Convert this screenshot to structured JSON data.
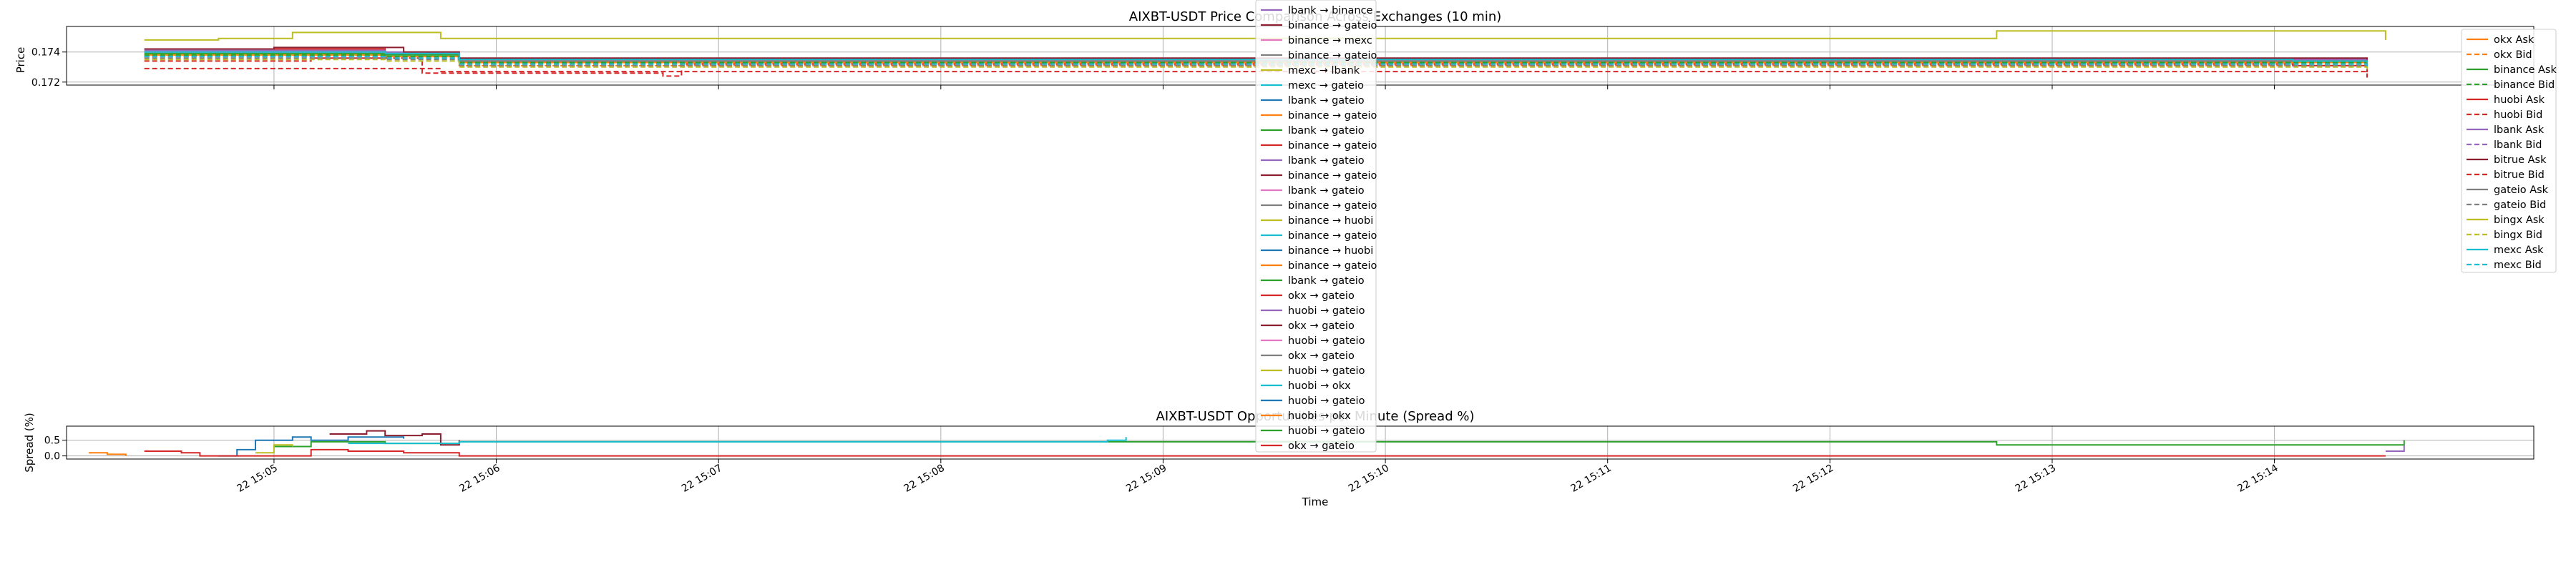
{
  "figure": {
    "background": "#ffffff"
  },
  "price_chart": {
    "title": "AIXBT-USDT Price Comparison Across Exchanges (10 min)",
    "ylabel": "Price",
    "yticks": [
      "0.174",
      "0.172"
    ],
    "legend_entries": [
      {
        "label": "okx Ask",
        "color": "#ff7f0e",
        "dashed": false
      },
      {
        "label": "okx Bid",
        "color": "#ff7f0e",
        "dashed": true
      },
      {
        "label": "binance Ask",
        "color": "#2ca02c",
        "dashed": false
      },
      {
        "label": "binance Bid",
        "color": "#2ca02c",
        "dashed": true
      },
      {
        "label": "huobi Ask",
        "color": "#d62728",
        "dashed": false
      },
      {
        "label": "huobi Bid",
        "color": "#d62728",
        "dashed": true
      },
      {
        "label": "lbank Ask",
        "color": "#9467bd",
        "dashed": false
      },
      {
        "label": "lbank Bid",
        "color": "#9467bd",
        "dashed": true
      },
      {
        "label": "bitrue Ask",
        "color": "#8c1f2f",
        "dashed": false
      },
      {
        "label": "bitrue Bid",
        "color": "#d62728",
        "dashed": true
      },
      {
        "label": "gateio Ask",
        "color": "#7f7f7f",
        "dashed": false
      },
      {
        "label": "gateio Bid",
        "color": "#7f7f7f",
        "dashed": true
      },
      {
        "label": "bingx Ask",
        "color": "#bcbd22",
        "dashed": false
      },
      {
        "label": "bingx Bid",
        "color": "#bcbd22",
        "dashed": true
      },
      {
        "label": "mexc Ask",
        "color": "#17becf",
        "dashed": false
      },
      {
        "label": "mexc Bid",
        "color": "#17becf",
        "dashed": true
      }
    ]
  },
  "spread_chart": {
    "title": "AIXBT-USDT Opportunities per Minute (Spread %)",
    "ylabel": "Spread (%)",
    "yticks": [
      "0.5",
      "0.0"
    ],
    "xlabel": "Time",
    "xticks": [
      "22 15:05",
      "22 15:06",
      "22 15:07",
      "22 15:08",
      "22 15:09",
      "22 15:10",
      "22 15:11",
      "22 15:12",
      "22 15:13",
      "22 15:14"
    ],
    "legend_entries": [
      {
        "label": "lbank → binance",
        "color": "#9467bd"
      },
      {
        "label": "binance → gateio",
        "color": "#8c1f2f"
      },
      {
        "label": "binance → mexc",
        "color": "#e377c2"
      },
      {
        "label": "binance → gateio",
        "color": "#7f7f7f"
      },
      {
        "label": "mexc → lbank",
        "color": "#bcbd22"
      },
      {
        "label": "mexc → gateio",
        "color": "#17becf"
      },
      {
        "label": "lbank → gateio",
        "color": "#1f77b4"
      },
      {
        "label": "binance → gateio",
        "color": "#ff7f0e"
      },
      {
        "label": "lbank → gateio",
        "color": "#2ca02c"
      },
      {
        "label": "binance → gateio",
        "color": "#d62728"
      },
      {
        "label": "lbank → gateio",
        "color": "#9467bd"
      },
      {
        "label": "binance → gateio",
        "color": "#8c1f2f"
      },
      {
        "label": "lbank → gateio",
        "color": "#e377c2"
      },
      {
        "label": "binance → gateio",
        "color": "#7f7f7f"
      },
      {
        "label": "binance → huobi",
        "color": "#bcbd22"
      },
      {
        "label": "binance → gateio",
        "color": "#17becf"
      },
      {
        "label": "binance → huobi",
        "color": "#1f77b4"
      },
      {
        "label": "binance → gateio",
        "color": "#ff7f0e"
      },
      {
        "label": "lbank → gateio",
        "color": "#2ca02c"
      },
      {
        "label": "okx → gateio",
        "color": "#d62728"
      },
      {
        "label": "huobi → gateio",
        "color": "#9467bd"
      },
      {
        "label": "okx → gateio",
        "color": "#8c1f2f"
      },
      {
        "label": "huobi → gateio",
        "color": "#e377c2"
      },
      {
        "label": "okx → gateio",
        "color": "#7f7f7f"
      },
      {
        "label": "huobi → gateio",
        "color": "#bcbd22"
      },
      {
        "label": "huobi → okx",
        "color": "#17becf"
      },
      {
        "label": "huobi → gateio",
        "color": "#1f77b4"
      },
      {
        "label": "huobi → okx",
        "color": "#ff7f0e"
      },
      {
        "label": "huobi → gateio",
        "color": "#2ca02c"
      },
      {
        "label": "okx → gateio",
        "color": "#d62728"
      }
    ]
  },
  "chart_data": [
    {
      "type": "line",
      "title": "AIXBT-USDT Price Comparison Across Exchanges (10 min)",
      "xlabel": "",
      "ylabel": "Price",
      "xlim": [
        "22 15:04:04",
        "22 15:15:10"
      ],
      "ylim": [
        0.1718,
        0.1757
      ],
      "grid": true,
      "legend_placement": "upper right",
      "series": [
        {
          "name": "okx Ask",
          "color": "#ff7f0e",
          "dashed": false,
          "points": [
            [
              "22 15:04:25",
              0.1738
            ],
            [
              "22 15:05:30",
              0.1737
            ],
            [
              "22 15:05:50",
              0.1733
            ],
            [
              "22 15:14:05",
              0.1733
            ],
            [
              "22 15:14:25",
              0.1731
            ]
          ]
        },
        {
          "name": "okx Bid",
          "color": "#ff7f0e",
          "dashed": true,
          "points": [
            [
              "22 15:04:25",
              0.1737
            ],
            [
              "22 15:05:30",
              0.1736
            ],
            [
              "22 15:05:50",
              0.1731
            ],
            [
              "22 15:14:05",
              0.1731
            ],
            [
              "22 15:14:25",
              0.1728
            ]
          ]
        },
        {
          "name": "binance Ask",
          "color": "#2ca02c",
          "dashed": false,
          "points": [
            [
              "22 15:04:25",
              0.1739
            ],
            [
              "22 15:05:30",
              0.1738
            ],
            [
              "22 15:05:50",
              0.1734
            ],
            [
              "22 15:14:05",
              0.1734
            ],
            [
              "22 15:14:25",
              0.1733
            ]
          ]
        },
        {
          "name": "binance Bid",
          "color": "#2ca02c",
          "dashed": true,
          "points": [
            [
              "22 15:04:25",
              0.1738
            ],
            [
              "22 15:05:30",
              0.1737
            ],
            [
              "22 15:05:50",
              0.1733
            ],
            [
              "22 15:14:05",
              0.1733
            ],
            [
              "22 15:14:25",
              0.1731
            ]
          ]
        },
        {
          "name": "huobi Ask",
          "color": "#d62728",
          "dashed": false,
          "points": [
            [
              "22 15:04:25",
              0.1742
            ],
            [
              "22 15:05:30",
              0.1739
            ],
            [
              "22 15:05:50",
              0.1735
            ],
            [
              "22 15:14:05",
              0.1735
            ],
            [
              "22 15:14:25",
              0.1733
            ]
          ]
        },
        {
          "name": "huobi Bid",
          "color": "#d62728",
          "dashed": true,
          "points": [
            [
              "22 15:04:25",
              0.1734
            ],
            [
              "22 15:05:10",
              0.1736
            ],
            [
              "22 15:05:40",
              0.1726
            ],
            [
              "22 15:06:45",
              0.1724
            ],
            [
              "22 15:06:50",
              0.1732
            ],
            [
              "22 15:14:05",
              0.1731
            ],
            [
              "22 15:14:25",
              0.1723
            ]
          ]
        },
        {
          "name": "lbank Ask",
          "color": "#9467bd",
          "dashed": false,
          "points": [
            [
              "22 15:04:25",
              0.1741
            ],
            [
              "22 15:05:30",
              0.174
            ],
            [
              "22 15:05:50",
              0.1735
            ],
            [
              "22 15:14:05",
              0.1735
            ],
            [
              "22 15:14:25",
              0.1736
            ]
          ]
        },
        {
          "name": "lbank Bid",
          "color": "#9467bd",
          "dashed": true,
          "points": [
            [
              "22 15:04:25",
              0.1737
            ],
            [
              "22 15:05:30",
              0.1736
            ],
            [
              "22 15:05:50",
              0.1732
            ],
            [
              "22 15:14:05",
              0.1732
            ],
            [
              "22 15:14:25",
              0.173
            ]
          ]
        },
        {
          "name": "bitrue Ask",
          "color": "#8c1f2f",
          "dashed": false,
          "points": [
            [
              "22 15:04:25",
              0.1742
            ],
            [
              "22 15:05:00",
              0.1743
            ],
            [
              "22 15:05:35",
              0.174
            ],
            [
              "22 15:05:50",
              0.1736
            ],
            [
              "22 15:14:05",
              0.1736
            ],
            [
              "22 15:14:25",
              0.1735
            ]
          ]
        },
        {
          "name": "bitrue Bid",
          "color": "#d62728",
          "dashed": true,
          "points": [
            [
              "22 15:04:25",
              0.1729
            ],
            [
              "22 15:05:40",
              0.1729
            ],
            [
              "22 15:05:45",
              0.1727
            ],
            [
              "22 15:14:05",
              0.1727
            ],
            [
              "22 15:14:25",
              0.1723
            ]
          ]
        },
        {
          "name": "gateio Ask",
          "color": "#7f7f7f",
          "dashed": false,
          "points": [
            [
              "22 15:04:25",
              0.174
            ],
            [
              "22 15:05:30",
              0.1739
            ],
            [
              "22 15:05:50",
              0.1734
            ],
            [
              "22 15:14:05",
              0.1734
            ],
            [
              "22 15:14:25",
              0.1732
            ]
          ]
        },
        {
          "name": "gateio Bid",
          "color": "#7f7f7f",
          "dashed": true,
          "points": [
            [
              "22 15:04:25",
              0.1736
            ],
            [
              "22 15:05:30",
              0.1735
            ],
            [
              "22 15:05:50",
              0.1731
            ],
            [
              "22 15:14:05",
              0.1731
            ],
            [
              "22 15:14:25",
              0.1729
            ]
          ]
        },
        {
          "name": "bingx Ask",
          "color": "#bcbd22",
          "dashed": false,
          "points": [
            [
              "22 15:04:25",
              0.1748
            ],
            [
              "22 15:04:45",
              0.1749
            ],
            [
              "22 15:05:05",
              0.1753
            ],
            [
              "22 15:05:40",
              0.1753
            ],
            [
              "22 15:05:45",
              0.1749
            ],
            [
              "22 15:12:40",
              0.1749
            ],
            [
              "22 15:12:45",
              0.1754
            ],
            [
              "22 15:14:25",
              0.1754
            ],
            [
              "22 15:14:30",
              0.1748
            ]
          ]
        },
        {
          "name": "bingx Bid",
          "color": "#bcbd22",
          "dashed": true,
          "points": [
            [
              "22 15:04:25",
              0.1735
            ],
            [
              "22 15:05:30",
              0.1734
            ],
            [
              "22 15:05:50",
              0.173
            ],
            [
              "22 15:14:05",
              0.173
            ],
            [
              "22 15:14:25",
              0.1728
            ]
          ]
        },
        {
          "name": "mexc Ask",
          "color": "#17becf",
          "dashed": false,
          "points": [
            [
              "22 15:04:25",
              0.174
            ],
            [
              "22 15:05:30",
              0.1739
            ],
            [
              "22 15:05:50",
              0.1735
            ],
            [
              "22 15:14:05",
              0.1734
            ],
            [
              "22 15:14:25",
              0.1733
            ]
          ]
        },
        {
          "name": "mexc Bid",
          "color": "#17becf",
          "dashed": true,
          "points": [
            [
              "22 15:04:25",
              0.1737
            ],
            [
              "22 15:05:30",
              0.1736
            ],
            [
              "22 15:05:50",
              0.1732
            ],
            [
              "22 15:14:05",
              0.1732
            ],
            [
              "22 15:14:25",
              0.173
            ]
          ]
        }
      ]
    },
    {
      "type": "line",
      "title": "AIXBT-USDT Opportunities per Minute (Spread %)",
      "xlabel": "Time",
      "ylabel": "Spread (%)",
      "xlim": [
        "22 15:04:04",
        "22 15:15:10"
      ],
      "ylim": [
        -0.1,
        0.95
      ],
      "grid": true,
      "legend_placement": "upper center",
      "series": [
        {
          "name": "lbank → gateio",
          "color": "#1f77b4",
          "points": [
            [
              "22 15:04:45",
              0.0
            ],
            [
              "22 15:04:50",
              0.2
            ],
            [
              "22 15:04:55",
              0.5
            ],
            [
              "22 15:05:05",
              0.6
            ],
            [
              "22 15:05:10",
              0.5
            ],
            [
              "22 15:05:20",
              0.6
            ],
            [
              "22 15:05:35",
              0.55
            ]
          ]
        },
        {
          "name": "binance → gateio",
          "color": "#ff7f0e",
          "points": [
            [
              "22 15:04:10",
              0.1
            ],
            [
              "22 15:04:15",
              0.05
            ],
            [
              "22 15:04:20",
              0.0
            ]
          ]
        },
        {
          "name": "lbank → gateio",
          "color": "#2ca02c",
          "points": [
            [
              "22 15:05:00",
              0.3
            ],
            [
              "22 15:05:10",
              0.45
            ],
            [
              "22 15:05:30",
              0.4
            ],
            [
              "22 15:05:50",
              0.45
            ],
            [
              "22 15:08:45",
              0.45
            ],
            [
              "22 15:12:40",
              0.45
            ],
            [
              "22 15:12:45",
              0.35
            ],
            [
              "22 15:14:30",
              0.35
            ],
            [
              "22 15:14:35",
              0.5
            ]
          ]
        },
        {
          "name": "binance → gateio",
          "color": "#d62728",
          "points": [
            [
              "22 15:04:25",
              0.15
            ],
            [
              "22 15:04:35",
              0.1
            ],
            [
              "22 15:04:40",
              0.0
            ],
            [
              "22 15:05:10",
              0.2
            ],
            [
              "22 15:05:20",
              0.15
            ],
            [
              "22 15:05:35",
              0.1
            ],
            [
              "22 15:05:50",
              0.0
            ],
            [
              "22 15:14:30",
              0.0
            ]
          ]
        },
        {
          "name": "binance → gateio",
          "color": "#8c1f2f",
          "points": [
            [
              "22 15:05:15",
              0.7
            ],
            [
              "22 15:05:25",
              0.8
            ],
            [
              "22 15:05:30",
              0.65
            ],
            [
              "22 15:05:40",
              0.7
            ],
            [
              "22 15:05:45",
              0.35
            ],
            [
              "22 15:05:50",
              0.5
            ]
          ]
        },
        {
          "name": "huobi → gateio",
          "color": "#bcbd22",
          "points": [
            [
              "22 15:04:55",
              0.1
            ],
            [
              "22 15:05:00",
              0.35
            ],
            [
              "22 15:05:05",
              0.3
            ]
          ]
        },
        {
          "name": "huobi → okx",
          "color": "#17becf",
          "points": [
            [
              "22 15:05:20",
              0.4
            ],
            [
              "22 15:05:50",
              0.45
            ],
            [
              "22 15:08:45",
              0.5
            ],
            [
              "22 15:08:50",
              0.6
            ]
          ]
        },
        {
          "name": "lbank → gateio",
          "color": "#9467bd",
          "points": [
            [
              "22 15:14:30",
              0.15
            ],
            [
              "22 15:14:35",
              0.35
            ]
          ]
        }
      ]
    }
  ]
}
